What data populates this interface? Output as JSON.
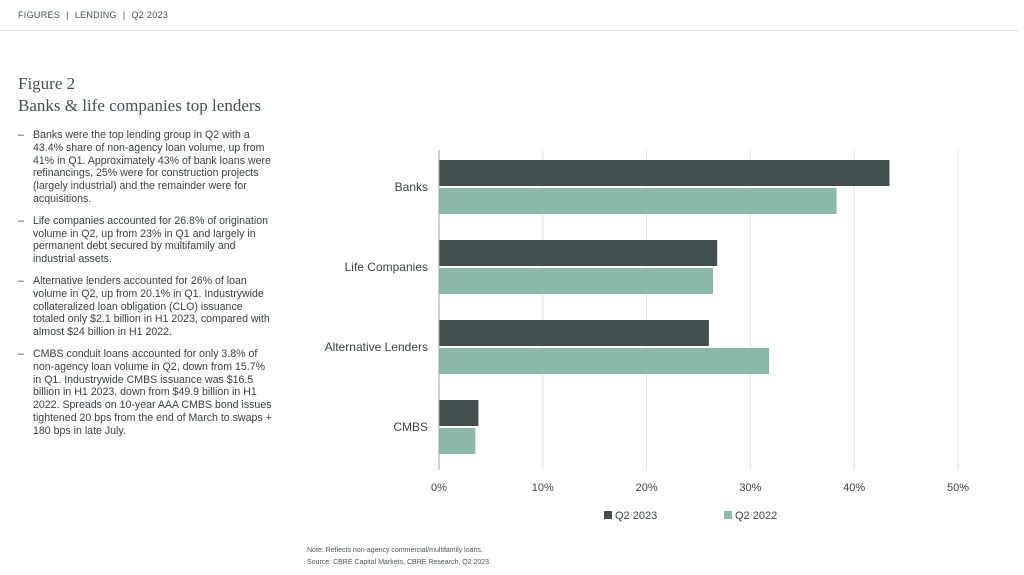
{
  "header": {
    "section": "FIGURES",
    "category": "LENDING",
    "period": "Q2 2023",
    "separator": "|"
  },
  "figure": {
    "number": "Figure 2",
    "title": "Banks & life companies top lenders"
  },
  "bullets": [
    {
      "dash": "–",
      "text": "Banks were the top lending group in Q2 with a 43.4% share of non-agency loan volume, up from 41% in Q1. Approximately 43% of bank loans were refinancings, 25% were for construction projects (largely industrial) and the remainder were for acquisitions."
    },
    {
      "dash": "–",
      "text": "Life companies accounted for 26.8% of origination volume in Q2, up from 23% in Q1 and largely in permanent debt secured by multifamily and industrial assets."
    },
    {
      "dash": "–",
      "text": "Alternative lenders accounted for 26% of loan volume in Q2, up from 20.1% in Q1. Industrywide collateralized loan obligation (CLO) issuance totaled only $2.1 billion in H1 2023, compared with almost $24 billion in H1 2022."
    },
    {
      "dash": "–",
      "text": "CMBS conduit loans accounted for only 3.8% of non-agency loan volume in Q2, down from 15.7% in Q1. Industrywide CMBS issuance was $16.5 billion in H1 2023, down from $49.9 billion in H1 2022. Spreads on 10-year AAA CMBS bond issues tightened 20 bps from the end of March to swaps + 180 bps in late July."
    }
  ],
  "chart_data": {
    "type": "bar",
    "orientation": "horizontal",
    "categories": [
      "Banks",
      "Life Companies",
      "Alternative Lenders",
      "CMBS"
    ],
    "series": [
      {
        "name": "Q2 2023",
        "color": "#434e50",
        "values": [
          43.4,
          26.8,
          26.0,
          3.8
        ]
      },
      {
        "name": "Q2 2022",
        "color": "#8ab9aa",
        "values": [
          38.3,
          26.4,
          31.8,
          3.5
        ]
      }
    ],
    "xlim": [
      0,
      50
    ],
    "xticks": [
      0,
      10,
      20,
      30,
      40,
      50
    ],
    "tick_suffix": "%",
    "grid": true,
    "legend_position": "bottom"
  },
  "notes": {
    "note": "Note: Reflects non-agency commercial/multifamily loans.",
    "source": "Source: CBRE Capital Markets, CBRE Research, Q2 2023."
  }
}
